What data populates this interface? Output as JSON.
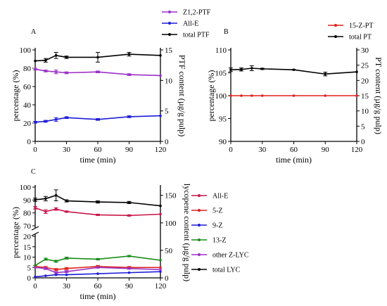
{
  "chart_data": [
    {
      "panel": "A",
      "type": "line",
      "xlabel": "time (min)",
      "ylabel": "percentage (%)",
      "y2label": "PTF content (µg/g pulp)",
      "x_ticks": [
        "0",
        "30",
        "60",
        "90",
        "120"
      ],
      "y_ticks": [
        "0",
        "20",
        "40",
        "60",
        "80",
        "100"
      ],
      "y2_ticks": [
        "0",
        "5",
        "10",
        "15"
      ],
      "xlim": [
        0,
        120
      ],
      "ylim": [
        0,
        100
      ],
      "y2lim": [
        0,
        15
      ],
      "legend_position": "above-right",
      "series": [
        {
          "name": "Z1,2-PTF",
          "axis": "left",
          "color": "#9b30c7",
          "x": [
            0,
            10,
            20,
            30,
            60,
            90,
            120
          ],
          "y": [
            79,
            77,
            76,
            75,
            76,
            73,
            72
          ],
          "err": [
            1,
            1,
            2,
            1,
            1,
            1,
            0
          ]
        },
        {
          "name": "All-E",
          "axis": "left",
          "color": "#1c1cd9",
          "x": [
            0,
            10,
            20,
            30,
            60,
            90,
            120
          ],
          "y": [
            21,
            22,
            24,
            26,
            24,
            27,
            28
          ],
          "err": [
            1,
            1,
            2,
            1,
            1,
            1,
            0
          ]
        },
        {
          "name": "total PTF",
          "axis": "right",
          "color": "#000000",
          "x": [
            0,
            10,
            20,
            30,
            60,
            90,
            120
          ],
          "y": [
            13.2,
            13.3,
            14.1,
            13.8,
            13.8,
            14.3,
            14.1
          ],
          "err": [
            0,
            0.3,
            0.5,
            0.2,
            0.8,
            0.3,
            0
          ]
        }
      ]
    },
    {
      "panel": "B",
      "type": "line",
      "xlabel": "time (min)",
      "ylabel": "percentage (%)",
      "y2label": "PT content (µg/g pulp)",
      "x_ticks": [
        "0",
        "30",
        "60",
        "90",
        "120"
      ],
      "y_ticks": [
        "90",
        "95",
        "100",
        "105",
        "110"
      ],
      "y2_ticks": [
        "0",
        "5",
        "10",
        "15",
        "20",
        "25",
        "30"
      ],
      "xlim": [
        0,
        120
      ],
      "ylim": [
        90,
        110
      ],
      "y2lim": [
        0,
        30
      ],
      "legend_position": "above-right",
      "series": [
        {
          "name": "15-Z-PT",
          "axis": "left",
          "color": "#e0201a",
          "x": [
            0,
            10,
            20,
            30,
            60,
            90,
            120
          ],
          "y": [
            100,
            100,
            100,
            100,
            100,
            100,
            100
          ],
          "err": [
            0,
            0,
            0,
            0,
            0,
            0,
            0
          ]
        },
        {
          "name": "total PT",
          "axis": "right",
          "color": "#000000",
          "x": [
            0,
            10,
            20,
            30,
            60,
            90,
            120
          ],
          "y": [
            23.5,
            23.6,
            24.0,
            23.8,
            23.5,
            22.1,
            22.8
          ],
          "err": [
            0.6,
            0.5,
            0.8,
            0.2,
            0.1,
            0.6,
            0
          ]
        }
      ]
    },
    {
      "panel": "C",
      "type": "line",
      "xlabel": "time (min)",
      "ylabel": "percentage (%)",
      "y2label": "lycopene content (µg/g pulp)",
      "x_ticks": [
        "0",
        "30",
        "60",
        "90",
        "120"
      ],
      "y_ticks": [
        "0",
        "5",
        "10",
        "15",
        "20",
        "70",
        "80",
        "90",
        "100"
      ],
      "y2_ticks": [
        "0",
        "50",
        "100",
        "150"
      ],
      "xlim": [
        0,
        120
      ],
      "y_break": [
        20,
        70
      ],
      "y2lim": [
        0,
        165
      ],
      "legend_position": "right",
      "series": [
        {
          "name": "All-E",
          "axis": "left",
          "color": "#c8174d",
          "x": [
            0,
            10,
            20,
            30,
            60,
            90,
            120
          ],
          "y": [
            84,
            81,
            83,
            81,
            78.5,
            78,
            79
          ],
          "err": [
            1,
            1.5,
            1,
            0.5,
            0.5,
            0.5,
            0
          ]
        },
        {
          "name": "5-Z",
          "axis": "left",
          "color": "#e0201a",
          "x": [
            0,
            10,
            20,
            30,
            60,
            90,
            120
          ],
          "y": [
            5.5,
            5,
            4,
            4.5,
            5.5,
            5,
            5
          ],
          "err": [
            0.5,
            0.5,
            0.5,
            0.5,
            0.5,
            0.5,
            0
          ]
        },
        {
          "name": "9-Z",
          "axis": "left",
          "color": "#1c1cd9",
          "x": [
            0,
            10,
            20,
            30,
            60,
            90,
            120
          ],
          "y": [
            0.5,
            1,
            1.5,
            1.5,
            2,
            2.5,
            3
          ],
          "err": [
            0,
            0,
            0,
            0,
            0,
            0,
            0
          ]
        },
        {
          "name": "13-Z",
          "axis": "left",
          "color": "#1b8c1b",
          "x": [
            0,
            10,
            20,
            30,
            60,
            90,
            120
          ],
          "y": [
            6,
            9,
            8,
            9.5,
            9,
            10.5,
            8.5
          ],
          "err": [
            0,
            0.5,
            0.5,
            0.5,
            0.3,
            0.3,
            0
          ]
        },
        {
          "name": "other Z-LYC",
          "axis": "left",
          "color": "#9b30c7",
          "x": [
            0,
            10,
            20,
            30,
            60,
            90,
            120
          ],
          "y": [
            5,
            4.5,
            2.5,
            3,
            5,
            4.5,
            4
          ],
          "err": [
            0,
            0.5,
            0.5,
            0.5,
            0.3,
            0.3,
            0
          ]
        },
        {
          "name": "total LYC",
          "axis": "right",
          "color": "#000000",
          "x": [
            0,
            10,
            20,
            30,
            60,
            90,
            120
          ],
          "y": [
            142,
            144,
            150,
            140,
            138,
            137,
            131
          ],
          "err": [
            3,
            4,
            10,
            2,
            2,
            2,
            0
          ]
        }
      ]
    }
  ]
}
